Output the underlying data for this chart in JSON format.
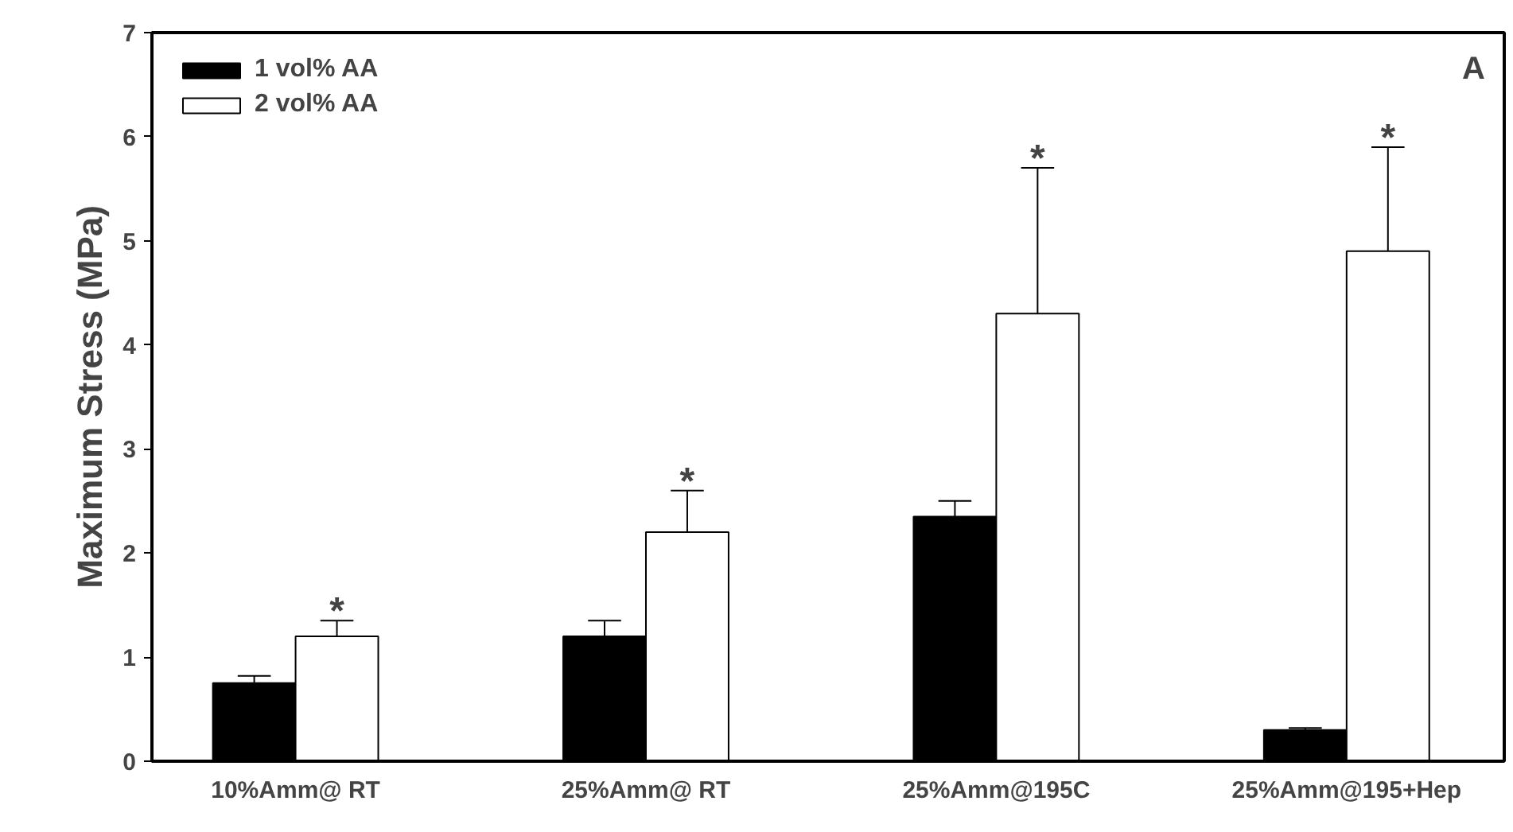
{
  "chart_data": {
    "type": "bar",
    "ylabel": "Maximum Stress (MPa)",
    "categories": [
      "10%Amm@ RT",
      "25%Amm@ RT",
      "25%Amm@195C",
      "25%Amm@195+Hep"
    ],
    "series": [
      {
        "name": "1 vol% AA",
        "color": "#000000",
        "values": [
          0.75,
          1.2,
          2.35,
          0.3
        ],
        "errors": [
          [
            0.75,
            0.82
          ],
          [
            1.2,
            1.35
          ],
          [
            2.35,
            2.5
          ],
          [
            0.3,
            0.32
          ]
        ]
      },
      {
        "name": "2 vol% AA",
        "color": "#ffffff",
        "values": [
          1.2,
          2.2,
          4.3,
          4.9
        ],
        "errors": [
          [
            1.2,
            1.35
          ],
          [
            2.2,
            2.6
          ],
          [
            4.3,
            5.7
          ],
          [
            4.9,
            5.9
          ]
        ]
      }
    ],
    "ylim": [
      0,
      7
    ],
    "yticks": [
      0,
      1,
      2,
      3,
      4,
      5,
      6,
      7
    ],
    "grid": false,
    "legend": "top left",
    "annotations": [
      "A",
      "*",
      "*",
      "*",
      "*"
    ]
  }
}
